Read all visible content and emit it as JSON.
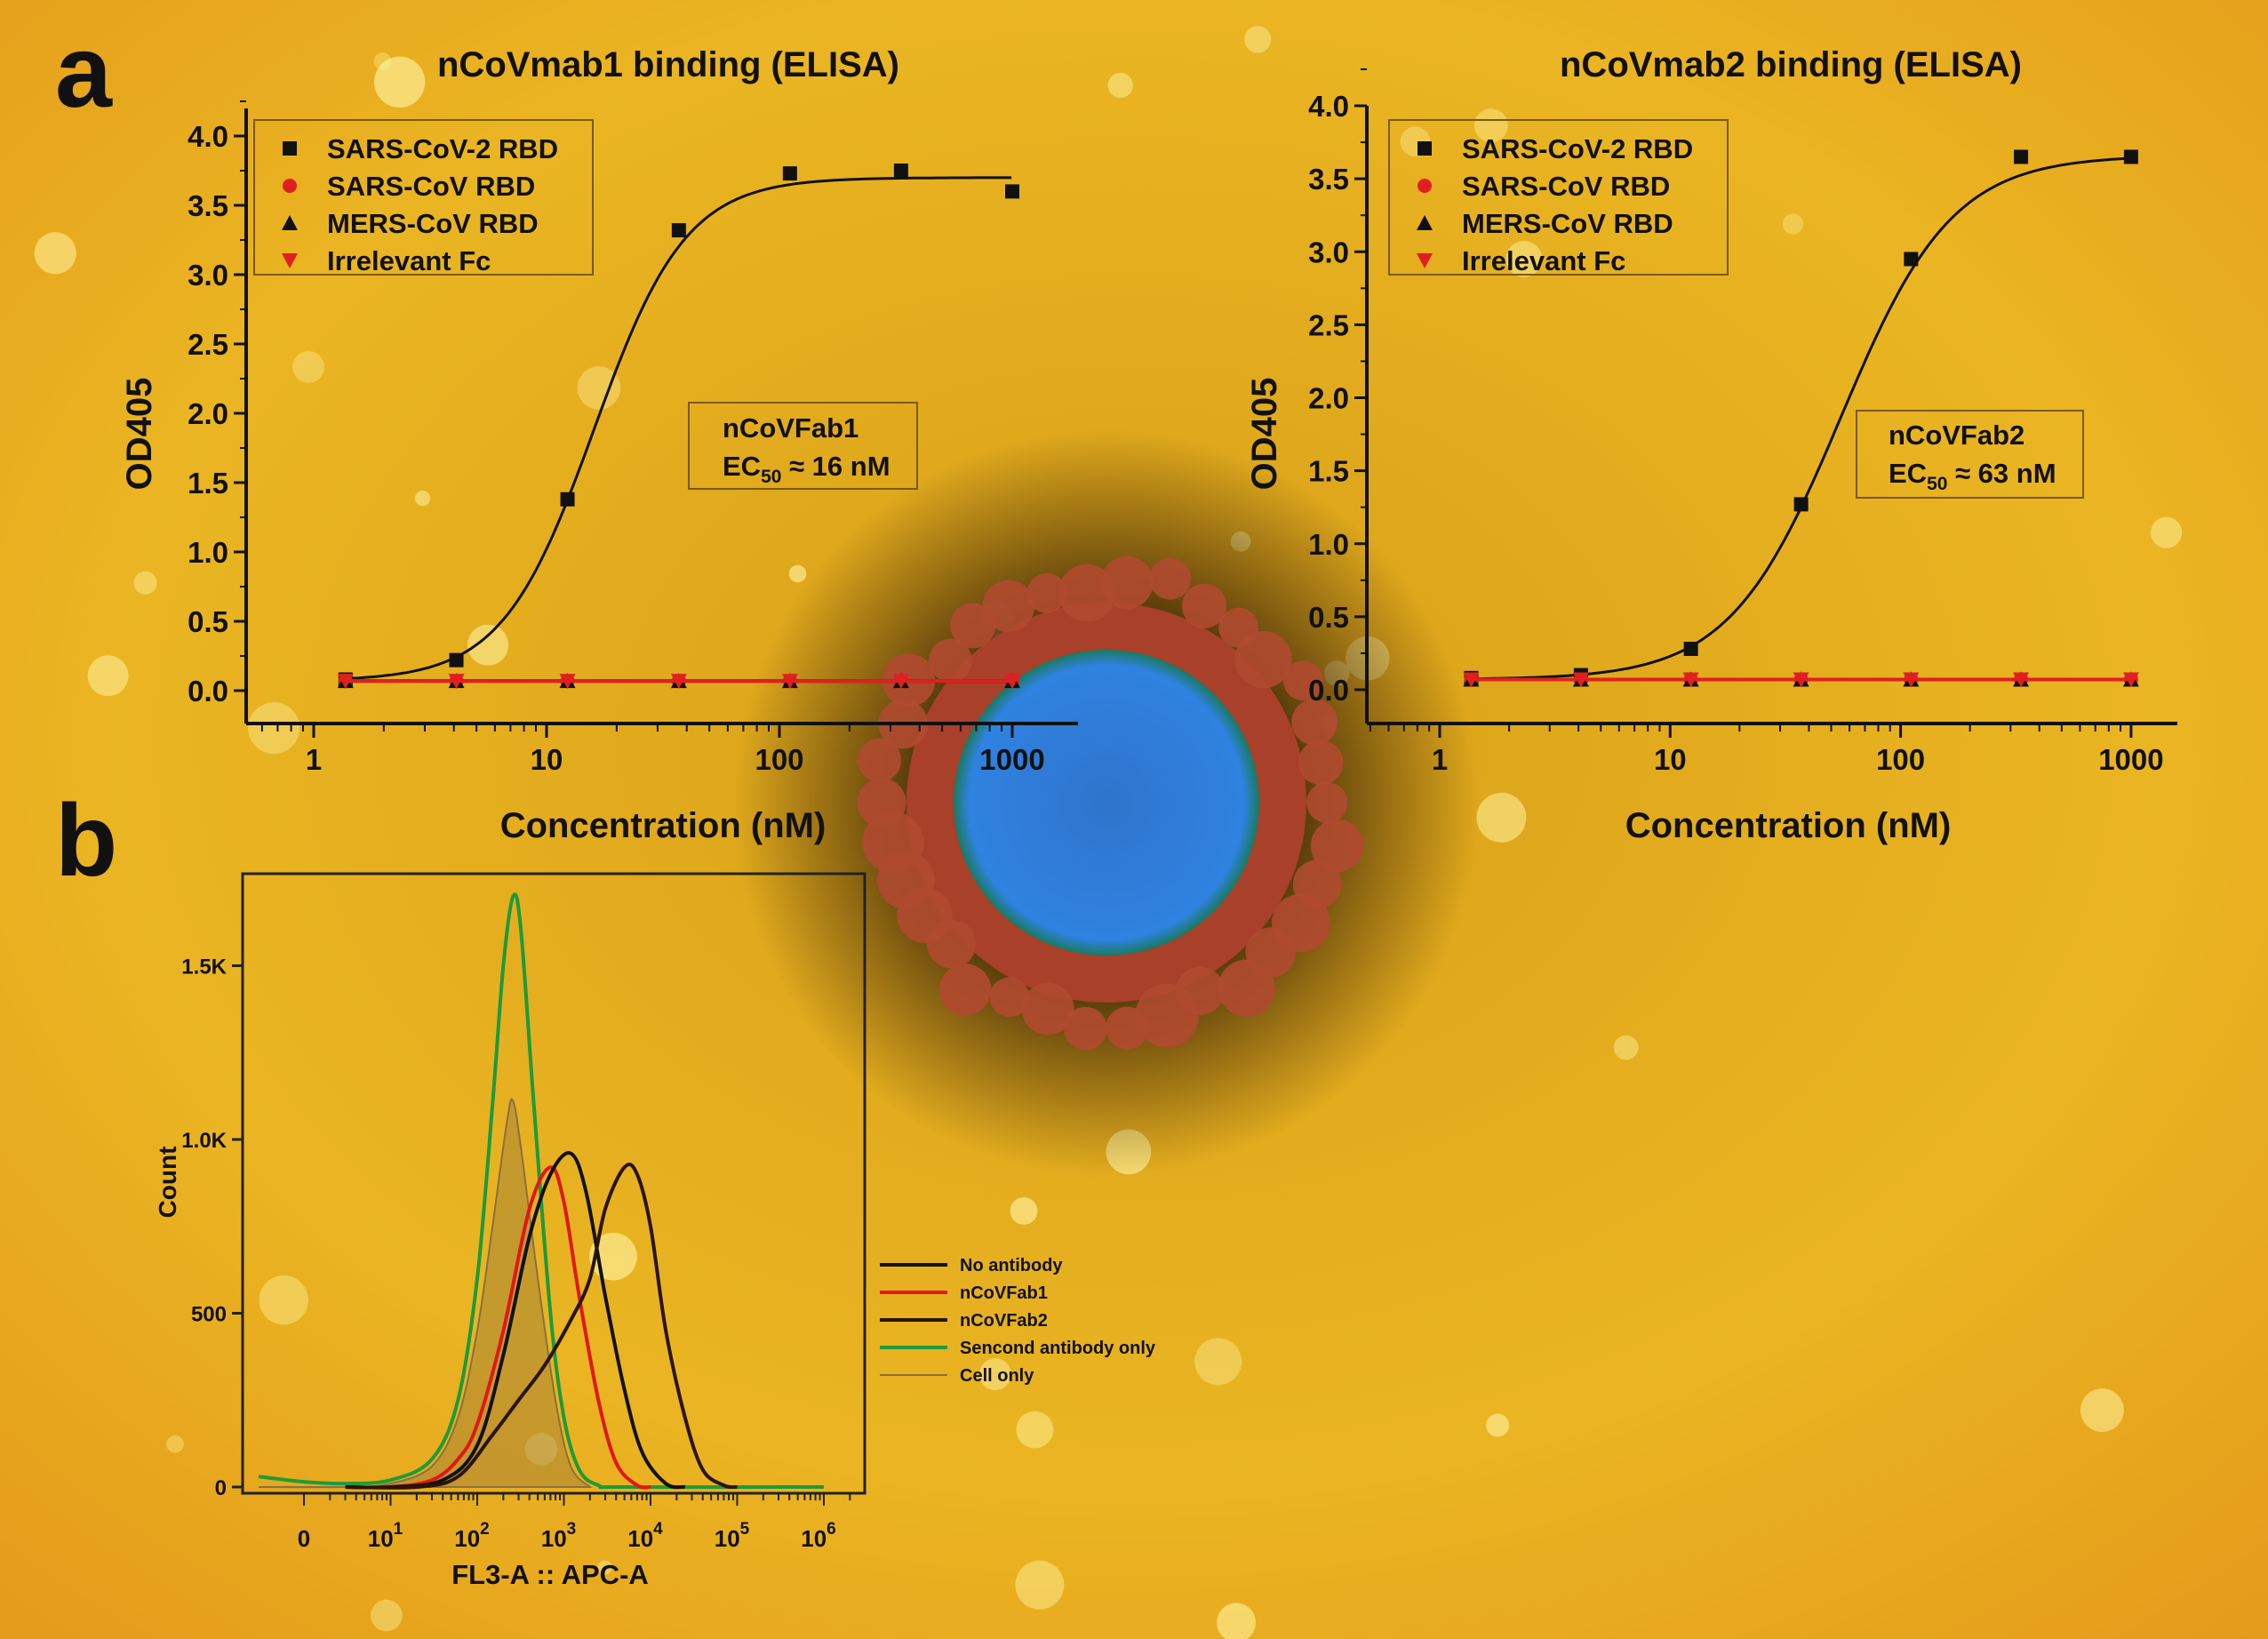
{
  "panel_labels": {
    "a": "a",
    "b": "b"
  },
  "chart_data": [
    {
      "type": "scatter",
      "panel": "a",
      "title": "nCoVmab1 binding (ELISA)",
      "xlabel": "Concentration (nM)",
      "ylabel": "OD405",
      "x_scale": "log",
      "xlim": [
        0.5,
        3000
      ],
      "ylim": [
        -0.2,
        4.3
      ],
      "xticks": [
        1,
        10,
        100,
        1000
      ],
      "xtick_labels": [
        "1",
        "10",
        "100",
        "1000"
      ],
      "yticks": [
        0.0,
        0.5,
        1.0,
        1.5,
        2.0,
        2.5,
        3.0,
        3.5,
        4.0
      ],
      "ytick_labels": [
        "0.0",
        "0.5",
        "1.0",
        "1.5",
        "2.0",
        "2.5",
        "3.0",
        "3.5",
        "4.0"
      ],
      "legend_position": "top-left",
      "x": [
        1.37,
        4.1,
        12.3,
        37,
        111,
        333,
        1000
      ],
      "series": [
        {
          "name": "SARS-CoV-2 RBD",
          "marker": "square",
          "color": "#111111",
          "values": [
            0.08,
            0.22,
            1.38,
            3.32,
            3.73,
            3.75,
            3.6
          ],
          "fit": true
        },
        {
          "name": "SARS-CoV RBD",
          "marker": "circle",
          "color": "#e02020",
          "values": [
            0.07,
            0.07,
            0.07,
            0.07,
            0.07,
            0.07,
            0.07
          ]
        },
        {
          "name": "MERS-CoV RBD",
          "marker": "triangle-up",
          "color": "#111111",
          "values": [
            0.07,
            0.07,
            0.07,
            0.07,
            0.07,
            0.07,
            0.07
          ]
        },
        {
          "name": "Irrelevant Fc",
          "marker": "triangle-down",
          "color": "#e02020",
          "values": [
            0.07,
            0.07,
            0.07,
            0.07,
            0.07,
            0.07,
            0.07
          ]
        }
      ],
      "annotation": {
        "line1": "nCoVFab1",
        "ec_main": "EC",
        "ec_sub": "50",
        "ec_value": " ≈ 16 nM"
      }
    },
    {
      "type": "scatter",
      "panel": "a",
      "title": "nCoVmab2 binding (ELISA)",
      "xlabel": "Concentration (nM)",
      "ylabel": "OD405",
      "x_scale": "log",
      "xlim": [
        0.5,
        2000
      ],
      "ylim": [
        -0.2,
        4.0
      ],
      "xticks": [
        1,
        10,
        100,
        1000
      ],
      "xtick_labels": [
        "1",
        "10",
        "100",
        "1000"
      ],
      "yticks": [
        0.0,
        0.5,
        1.0,
        1.5,
        2.0,
        2.5,
        3.0,
        3.5,
        4.0
      ],
      "ytick_labels": [
        "0.0",
        "0.5",
        "1.0",
        "1.5",
        "2.0",
        "2.5",
        "3.0",
        "3.5",
        "4.0"
      ],
      "legend_position": "top-left",
      "x": [
        1.37,
        4.1,
        12.3,
        37,
        111,
        333,
        1000
      ],
      "series": [
        {
          "name": "SARS-CoV-2 RBD",
          "marker": "square",
          "color": "#111111",
          "values": [
            0.08,
            0.1,
            0.28,
            1.27,
            2.95,
            3.65,
            3.65
          ],
          "fit": true
        },
        {
          "name": "SARS-CoV RBD",
          "marker": "circle",
          "color": "#e02020",
          "values": [
            0.07,
            0.07,
            0.07,
            0.07,
            0.07,
            0.07,
            0.07
          ]
        },
        {
          "name": "MERS-CoV RBD",
          "marker": "triangle-up",
          "color": "#111111",
          "values": [
            0.07,
            0.07,
            0.07,
            0.07,
            0.07,
            0.07,
            0.07
          ]
        },
        {
          "name": "Irrelevant Fc",
          "marker": "triangle-down",
          "color": "#e02020",
          "values": [
            0.07,
            0.07,
            0.07,
            0.07,
            0.07,
            0.07,
            0.07
          ]
        }
      ],
      "annotation": {
        "line1": "nCoVFab2",
        "ec_main": "EC",
        "ec_sub": "50",
        "ec_value": " ≈ 63 nM"
      }
    },
    {
      "type": "line",
      "panel": "b",
      "title": "",
      "xlabel": "FL3-A :: APC-A",
      "ylabel": "Count",
      "x_scale": "log",
      "ylim": [
        0,
        1800
      ],
      "xtick_labels": [
        {
          "base": "0",
          "exp": ""
        },
        {
          "base": "10",
          "exp": "1"
        },
        {
          "base": "10",
          "exp": "2"
        },
        {
          "base": "10",
          "exp": "3"
        },
        {
          "base": "10",
          "exp": "4"
        },
        {
          "base": "10",
          "exp": "5"
        },
        {
          "base": "10",
          "exp": "6"
        }
      ],
      "yticks": [
        0,
        500,
        1000,
        1500
      ],
      "ytick_labels": [
        "0",
        "500",
        "1.0K",
        "1.5K"
      ],
      "legend_position": "right",
      "series": [
        {
          "name": "Cell only",
          "color": "#8a7040",
          "filled": true,
          "points": [
            [
              0.3,
              0
            ],
            [
              3,
              0
            ],
            [
              10,
              10
            ],
            [
              30,
              60
            ],
            [
              60,
              200
            ],
            [
              100,
              450
            ],
            [
              150,
              750
            ],
            [
              220,
              1050
            ],
            [
              260,
              1110
            ],
            [
              330,
              950
            ],
            [
              500,
              600
            ],
            [
              800,
              250
            ],
            [
              1200,
              60
            ],
            [
              2000,
              0
            ]
          ]
        },
        {
          "name": "Sencond antibody only",
          "color": "#1e9a3a",
          "points": [
            [
              0.3,
              30
            ],
            [
              1,
              15
            ],
            [
              3,
              10
            ],
            [
              10,
              20
            ],
            [
              30,
              80
            ],
            [
              60,
              250
            ],
            [
              100,
              600
            ],
            [
              150,
              1100
            ],
            [
              200,
              1500
            ],
            [
              260,
              1700
            ],
            [
              320,
              1600
            ],
            [
              450,
              1100
            ],
            [
              700,
              500
            ],
            [
              1000,
              200
            ],
            [
              1500,
              50
            ],
            [
              2500,
              5
            ],
            [
              5000,
              0
            ],
            [
              1000000,
              0
            ]
          ]
        },
        {
          "name": "nCoVFab1",
          "color": "#e01818",
          "points": [
            [
              3,
              0
            ],
            [
              10,
              0
            ],
            [
              30,
              20
            ],
            [
              60,
              80
            ],
            [
              100,
              180
            ],
            [
              200,
              450
            ],
            [
              400,
              800
            ],
            [
              700,
              920
            ],
            [
              1000,
              820
            ],
            [
              1500,
              550
            ],
            [
              2500,
              250
            ],
            [
              4000,
              70
            ],
            [
              7000,
              5
            ],
            [
              10000,
              0
            ]
          ]
        },
        {
          "name": "No antibody",
          "color": "#111111",
          "points": [
            [
              3,
              0
            ],
            [
              10,
              0
            ],
            [
              40,
              20
            ],
            [
              100,
              120
            ],
            [
              200,
              380
            ],
            [
              400,
              720
            ],
            [
              700,
              900
            ],
            [
              1200,
              960
            ],
            [
              1800,
              850
            ],
            [
              3000,
              550
            ],
            [
              5000,
              280
            ],
            [
              8000,
              100
            ],
            [
              15000,
              10
            ],
            [
              25000,
              0
            ]
          ]
        },
        {
          "name": "nCoVFab2",
          "color": "#2a1408",
          "points": [
            [
              3,
              0
            ],
            [
              20,
              0
            ],
            [
              60,
              30
            ],
            [
              150,
              150
            ],
            [
              300,
              250
            ],
            [
              600,
              350
            ],
            [
              1200,
              480
            ],
            [
              2000,
              600
            ],
            [
              3000,
              800
            ],
            [
              5000,
              920
            ],
            [
              7000,
              900
            ],
            [
              10000,
              750
            ],
            [
              15000,
              450
            ],
            [
              25000,
              200
            ],
            [
              40000,
              50
            ],
            [
              70000,
              5
            ],
            [
              100000,
              0
            ]
          ]
        }
      ],
      "legend_order": [
        "No antibody",
        "nCoVFab1",
        "nCoVFab2",
        "Sencond antibody only",
        "Cell only"
      ]
    }
  ],
  "background": {
    "field_color": "#e8b020",
    "virus_core_color": "#2a78d8",
    "virus_spike_color": "#a8402a"
  }
}
